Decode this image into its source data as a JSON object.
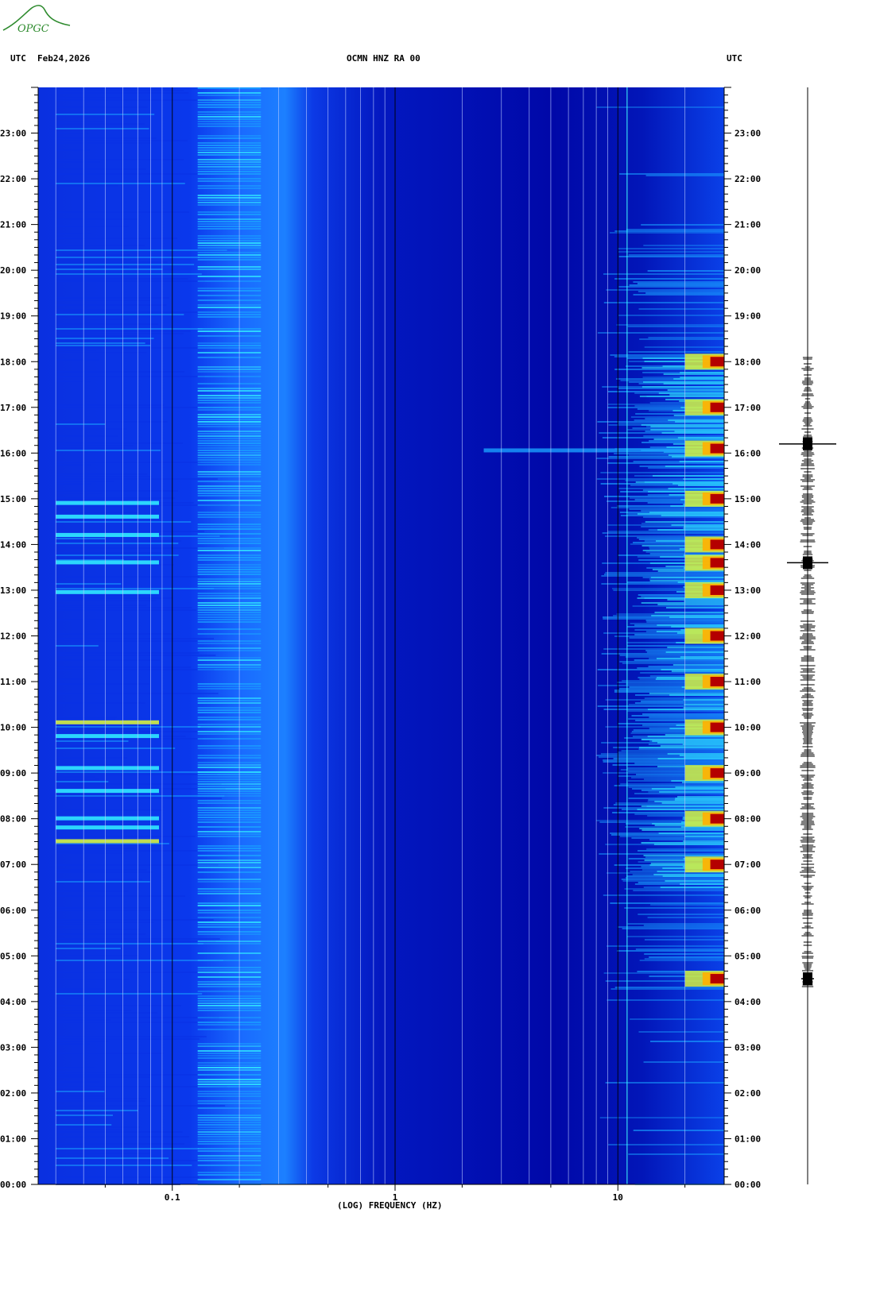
{
  "logo": {
    "text": "OPGC",
    "color": "#2e8b2e"
  },
  "header": {
    "left_tz": "UTC",
    "date": "Feb24,2026",
    "station": "OCMN HNZ RA 00",
    "right_tz": "UTC"
  },
  "chart_data": {
    "type": "heatmap",
    "xlabel": "(LOG) FREQUENCY (HZ)",
    "x_scale": "log",
    "x_range_hz": [
      0.025,
      30
    ],
    "x_ticks": [
      "0.1",
      "1",
      "10"
    ],
    "y_range_hours": [
      0,
      24
    ],
    "y_ticks_left": [
      "00:00",
      "01:00",
      "02:00",
      "03:00",
      "04:00",
      "05:00",
      "06:00",
      "07:00",
      "08:00",
      "09:00",
      "10:00",
      "11:00",
      "12:00",
      "13:00",
      "14:00",
      "15:00",
      "16:00",
      "17:00",
      "18:00",
      "19:00",
      "20:00",
      "21:00",
      "22:00",
      "23:00"
    ],
    "y_ticks_right": [
      "00:00",
      "01:00",
      "02:00",
      "03:00",
      "04:00",
      "05:00",
      "06:00",
      "07:00",
      "08:00",
      "09:00",
      "10:00",
      "11:00",
      "12:00",
      "13:00",
      "14:00",
      "15:00",
      "16:00",
      "17:00",
      "18:00",
      "19:00",
      "20:00",
      "21:00",
      "22:00",
      "23:00"
    ],
    "colormap": [
      "#0000a8",
      "#0a32e6",
      "#1aa0ff",
      "#30e8ff",
      "#d4f040",
      "#ffb000",
      "#b40000"
    ],
    "bursts_hours": [
      4.5,
      7.0,
      8.0,
      9.0,
      10.0,
      11.0,
      12.0,
      13.0,
      13.6,
      14.0,
      15.0,
      16.1,
      17.0,
      18.0
    ],
    "trace_events_hours": [
      4.5,
      13.6,
      16.2
    ],
    "grid": true
  }
}
